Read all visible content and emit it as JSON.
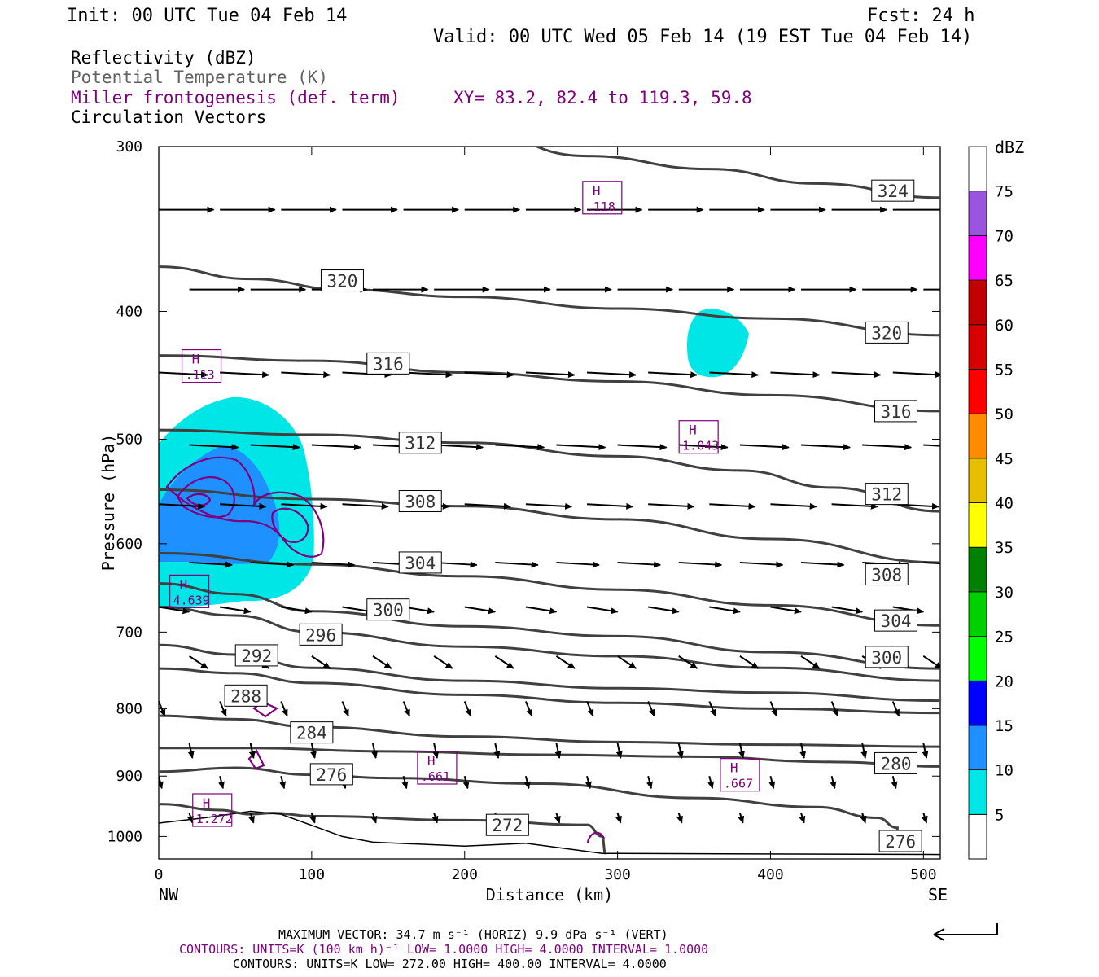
{
  "header": {
    "init": "Init: 00 UTC Tue 04 Feb 14",
    "fcst": "Fcst:   24 h",
    "valid": "Valid: 00 UTC Wed 05 Feb 14 (19 EST Tue 04 Feb 14)",
    "field1": "Reflectivity (dBZ)",
    "field2": "Potential Temperature (K)",
    "field3": "Miller frontogenesis (def. term)",
    "xy": "XY=  83.2, 82.4 to 119.3, 59.8",
    "field4": "Circulation Vectors"
  },
  "colors": {
    "theta": "#404040",
    "fronto": "#800080",
    "vector": "#000000",
    "field2_text": "#606060"
  },
  "chart_data": {
    "type": "cross-section",
    "xlabel": "Distance (km)",
    "ylabel": "Pressure (hPa)",
    "xlim": [
      0,
      511
    ],
    "ylim_pressure": [
      1040,
      300
    ],
    "x_ticks": [
      "0",
      "100",
      "200",
      "300",
      "400",
      "500"
    ],
    "x_tick_values": [
      0,
      100,
      200,
      300,
      400,
      500
    ],
    "y_ticks": [
      "300",
      "400",
      "500",
      "600",
      "700",
      "800",
      "900",
      "1000"
    ],
    "y_tick_values": [
      300,
      400,
      500,
      600,
      700,
      800,
      900,
      1000
    ],
    "left_end": "NW",
    "right_end": "SE",
    "theta_contours": [
      {
        "value": 324,
        "label": "324",
        "points": [
          [
            0,
            290
          ],
          [
            100,
            285
          ],
          [
            200,
            290
          ],
          [
            280,
            305
          ],
          [
            360,
            312
          ],
          [
            430,
            320
          ],
          [
            511,
            328
          ]
        ],
        "labels": [
          [
            480,
            324
          ]
        ]
      },
      {
        "value": 320,
        "label": "320",
        "points": [
          [
            0,
            370
          ],
          [
            60,
            378
          ],
          [
            120,
            385
          ],
          [
            200,
            390
          ],
          [
            300,
            398
          ],
          [
            400,
            405
          ],
          [
            511,
            417
          ]
        ],
        "labels": [
          [
            120,
            379
          ],
          [
            476,
            415
          ]
        ]
      },
      {
        "value": 316,
        "label": "316",
        "points": [
          [
            0,
            432
          ],
          [
            100,
            436
          ],
          [
            200,
            445
          ],
          [
            300,
            452
          ],
          [
            400,
            463
          ],
          [
            511,
            476
          ]
        ],
        "labels": [
          [
            150,
            438
          ],
          [
            482,
            476
          ]
        ]
      },
      {
        "value": 312,
        "label": "312",
        "points": [
          [
            0,
            492
          ],
          [
            100,
            496
          ],
          [
            200,
            503
          ],
          [
            300,
            515
          ],
          [
            380,
            528
          ],
          [
            440,
            544
          ],
          [
            511,
            567
          ]
        ],
        "labels": [
          [
            171,
            503
          ],
          [
            476,
            550
          ]
        ]
      },
      {
        "value": 308,
        "label": "308",
        "points": [
          [
            0,
            546
          ],
          [
            100,
            555
          ],
          [
            200,
            562
          ],
          [
            300,
            575
          ],
          [
            400,
            595
          ],
          [
            511,
            620
          ]
        ],
        "labels": [
          [
            171,
            557
          ],
          [
            476,
            633
          ]
        ]
      },
      {
        "value": 304,
        "label": "304",
        "points": [
          [
            0,
            610
          ],
          [
            100,
            622
          ],
          [
            200,
            635
          ],
          [
            300,
            650
          ],
          [
            400,
            668
          ],
          [
            511,
            692
          ]
        ],
        "labels": [
          [
            171,
            620
          ],
          [
            482,
            686
          ]
        ]
      },
      {
        "value": 300,
        "label": "300",
        "points": [
          [
            0,
            643
          ],
          [
            50,
            655
          ],
          [
            100,
            675
          ],
          [
            200,
            693
          ],
          [
            300,
            705
          ],
          [
            400,
            725
          ],
          [
            511,
            746
          ]
        ],
        "labels": [
          [
            150,
            673
          ],
          [
            476,
            731
          ]
        ]
      },
      {
        "value": 296,
        "label": "296",
        "points": [
          [
            0,
            670
          ],
          [
            50,
            680
          ],
          [
            100,
            700
          ],
          [
            200,
            718
          ],
          [
            300,
            730
          ],
          [
            400,
            745
          ],
          [
            511,
            762
          ]
        ],
        "labels": [
          [
            106,
            703
          ]
        ]
      },
      {
        "value": 292,
        "label": "292",
        "points": [
          [
            0,
            716
          ],
          [
            50,
            728
          ],
          [
            100,
            745
          ],
          [
            200,
            762
          ],
          [
            300,
            772
          ],
          [
            400,
            778
          ],
          [
            511,
            789
          ]
        ],
        "labels": [
          [
            64,
            729
          ]
        ]
      },
      {
        "value": 288,
        "label": "288",
        "points": [
          [
            0,
            746
          ],
          [
            50,
            752
          ],
          [
            100,
            765
          ],
          [
            200,
            781
          ],
          [
            300,
            792
          ],
          [
            400,
            800
          ],
          [
            511,
            806
          ]
        ],
        "labels": [
          [
            57,
            782
          ]
        ]
      },
      {
        "value": 284,
        "label": "284",
        "points": [
          [
            0,
            810
          ],
          [
            50,
            815
          ],
          [
            100,
            826
          ],
          [
            200,
            840
          ],
          [
            300,
            848
          ],
          [
            400,
            852
          ],
          [
            511,
            855
          ]
        ],
        "labels": [
          [
            100,
            834
          ]
        ]
      },
      {
        "value": 280,
        "label": "280",
        "points": [
          [
            0,
            857
          ],
          [
            60,
            857
          ],
          [
            150,
            862
          ],
          [
            250,
            867
          ],
          [
            350,
            870
          ],
          [
            440,
            878
          ],
          [
            511,
            885
          ]
        ],
        "labels": [
          [
            482,
            880
          ]
        ]
      },
      {
        "value": 276,
        "label": "276",
        "points": [
          [
            0,
            893
          ],
          [
            50,
            887
          ],
          [
            100,
            898
          ],
          [
            150,
            903
          ],
          [
            250,
            912
          ],
          [
            350,
            935
          ],
          [
            430,
            950
          ],
          [
            470,
            968
          ],
          [
            483,
            985
          ],
          [
            483,
            1028
          ]
        ],
        "labels": [
          [
            113,
            897
          ],
          [
            485,
            1008
          ]
        ]
      },
      {
        "value": 272,
        "label": "272",
        "points": [
          [
            0,
            945
          ],
          [
            40,
            955
          ],
          [
            60,
            962
          ],
          [
            75,
            960
          ],
          [
            100,
            965
          ],
          [
            200,
            972
          ],
          [
            280,
            980
          ],
          [
            290,
            1000
          ],
          [
            292,
            1030
          ]
        ],
        "labels": [
          [
            228,
            980
          ]
        ]
      }
    ],
    "terrain": [
      [
        0,
        977
      ],
      [
        30,
        968
      ],
      [
        60,
        957
      ],
      [
        80,
        962
      ],
      [
        120,
        1000
      ],
      [
        140,
        1010
      ],
      [
        200,
        1017
      ],
      [
        240,
        1012
      ],
      [
        290,
        1030
      ],
      [
        511,
        1032
      ]
    ],
    "frontogenesis_maxima": [
      {
        "label": "H",
        "value": ".118",
        "x": 290,
        "p": 328
      },
      {
        "label": "H",
        "value": ".113",
        "x": 28,
        "p": 440
      },
      {
        "label": "H",
        "value": "1.043",
        "x": 353,
        "p": 498
      },
      {
        "label": "H",
        "value": "4.639",
        "x": 20,
        "p": 652
      },
      {
        "label": "H",
        "value": ".661",
        "x": 182,
        "p": 887
      },
      {
        "label": "H",
        "value": ".667",
        "x": 380,
        "p": 898
      },
      {
        "label": "H",
        "value": "1.272",
        "x": 35,
        "p": 955
      }
    ],
    "reflectivity": {
      "units": "dBZ",
      "scale_labels": [
        "5",
        "10",
        "15",
        "20",
        "25",
        "30",
        "35",
        "40",
        "45",
        "50",
        "55",
        "60",
        "65",
        "70",
        "75"
      ],
      "scale_colors": [
        "#00e6e6",
        "#1e90ff",
        "#0000ff",
        "#00ff00",
        "#00d000",
        "#008000",
        "#ffff00",
        "#e6c000",
        "#ff8c00",
        "#ff0000",
        "#d60000",
        "#c00000",
        "#ff00ff",
        "#9955dd",
        "#ffffff"
      ]
    },
    "vector_rows": [
      {
        "p": 335,
        "u": 0.9,
        "w": 0.0
      },
      {
        "p": 385,
        "u": 0.9,
        "w": 0.0
      },
      {
        "p": 445,
        "u": 0.8,
        "w": 0.05
      },
      {
        "p": 505,
        "u": 0.8,
        "w": 0.05
      },
      {
        "p": 560,
        "u": 0.75,
        "w": 0.05
      },
      {
        "p": 620,
        "u": 0.7,
        "w": 0.05
      },
      {
        "p": 670,
        "u": 0.5,
        "w": 0.1
      },
      {
        "p": 730,
        "u": 0.3,
        "w": 0.25
      },
      {
        "p": 790,
        "u": 0.1,
        "w": 0.3
      },
      {
        "p": 850,
        "u": 0.05,
        "w": 0.3
      },
      {
        "p": 900,
        "u": 0.05,
        "w": 0.25
      },
      {
        "p": 960,
        "u": 0.05,
        "w": 0.2
      }
    ]
  },
  "footer": {
    "max_vector": "MAXIMUM VECTOR:  34.7 m s⁻¹ (HORIZ)        9.9 dPa s⁻¹ (VERT)",
    "contours1": "CONTOURS:  UNITS=K (100 km h)⁻¹  LOW=  1.0000      HIGH=  4.0000      INTERVAL=   1.0000",
    "contours2": "CONTOURS:  UNITS=K  LOW=  272.00       HIGH=  400.00       INTERVAL=    4.0000"
  }
}
